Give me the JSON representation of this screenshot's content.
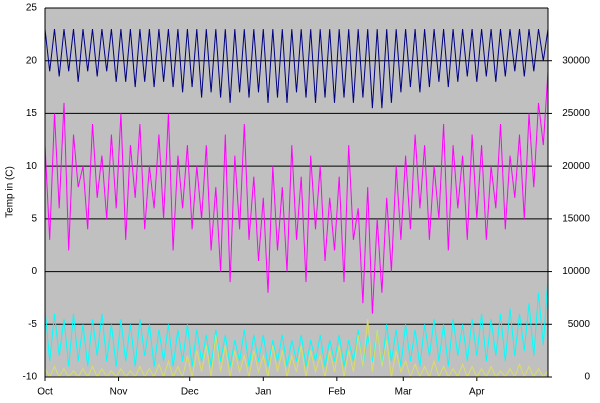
{
  "chart_data": {
    "type": "line",
    "y_label": "Temp in (C)",
    "xlim": [
      0,
      212
    ],
    "xticks": [
      {
        "value": 0,
        "label": "Oct"
      },
      {
        "value": 31,
        "label": "Nov"
      },
      {
        "value": 61,
        "label": "Dec"
      },
      {
        "value": 92,
        "label": "Jan"
      },
      {
        "value": 123,
        "label": "Feb"
      },
      {
        "value": 151,
        "label": "Mar"
      },
      {
        "value": 182,
        "label": "Apr"
      }
    ],
    "ylim": [
      -10,
      25
    ],
    "yticks": [
      -10,
      -5,
      0,
      5,
      10,
      15,
      20,
      25
    ],
    "y2lim": [
      0,
      35000
    ],
    "y2ticks": [
      0,
      5000,
      10000,
      15000,
      20000,
      25000,
      30000
    ],
    "grid": true,
    "x": [
      0,
      2,
      4,
      6,
      8,
      10,
      12,
      14,
      16,
      18,
      20,
      22,
      24,
      26,
      28,
      30,
      32,
      34,
      36,
      38,
      40,
      42,
      44,
      46,
      48,
      50,
      52,
      54,
      56,
      58,
      60,
      62,
      64,
      66,
      68,
      70,
      72,
      74,
      76,
      78,
      80,
      82,
      84,
      86,
      88,
      90,
      92,
      94,
      96,
      98,
      100,
      102,
      104,
      106,
      108,
      110,
      112,
      114,
      116,
      118,
      120,
      122,
      124,
      126,
      128,
      130,
      132,
      134,
      136,
      138,
      140,
      142,
      144,
      146,
      148,
      150,
      152,
      154,
      156,
      158,
      160,
      162,
      164,
      166,
      168,
      170,
      172,
      174,
      176,
      178,
      180,
      182,
      184,
      186,
      188,
      190,
      192,
      194,
      196,
      198,
      200,
      202,
      204,
      206,
      208,
      210,
      212
    ],
    "series": [
      {
        "name": "cyan",
        "color": "#00ffff",
        "axis": "y2",
        "values": [
          6500,
          1500,
          6000,
          2000,
          5500,
          1000,
          6000,
          1500,
          5000,
          1000,
          5500,
          2000,
          6000,
          1500,
          5000,
          1000,
          5500,
          1500,
          5000,
          1000,
          5500,
          2000,
          5000,
          1000,
          4500,
          1500,
          5000,
          1000,
          4500,
          1500,
          5000,
          1000,
          4500,
          1500,
          4000,
          1000,
          4500,
          1500,
          4000,
          1000,
          3500,
          1500,
          4500,
          1000,
          4000,
          1500,
          4000,
          1000,
          3500,
          1500,
          4000,
          1000,
          3500,
          1500,
          4000,
          1000,
          3500,
          1500,
          4000,
          1000,
          3500,
          1500,
          4000,
          1000,
          3500,
          1500,
          4500,
          1000,
          4000,
          1500,
          4500,
          1000,
          5000,
          1500,
          4500,
          1000,
          5000,
          1500,
          4500,
          1000,
          5000,
          2000,
          5500,
          1500,
          5000,
          1000,
          5500,
          2000,
          5000,
          1500,
          5500,
          2000,
          6000,
          1500,
          5500,
          2000,
          6000,
          1500,
          6500,
          2000,
          6000,
          2500,
          7000,
          2000,
          8000,
          3000,
          9500
        ]
      },
      {
        "name": "yellow",
        "color": "#dcdc64",
        "axis": "y2",
        "values": [
          800,
          0,
          1000,
          0,
          800,
          0,
          600,
          0,
          800,
          0,
          1000,
          0,
          800,
          0,
          600,
          0,
          800,
          0,
          600,
          0,
          1000,
          0,
          800,
          0,
          1200,
          0,
          1500,
          0,
          1000,
          0,
          2000,
          0,
          2500,
          500,
          3000,
          0,
          4000,
          500,
          3000,
          0,
          2500,
          500,
          2000,
          0,
          2500,
          500,
          2000,
          0,
          3000,
          500,
          2500,
          0,
          2000,
          500,
          3000,
          0,
          2500,
          500,
          2000,
          0,
          2500,
          500,
          3000,
          0,
          2500,
          500,
          4000,
          1000,
          5500,
          500,
          4500,
          1000,
          3500,
          0,
          2500,
          500,
          1500,
          0,
          1200,
          0,
          1000,
          0,
          1500,
          0,
          1000,
          0,
          800,
          0,
          1200,
          0,
          1000,
          0,
          800,
          0,
          1000,
          0,
          600,
          0,
          800,
          0,
          1200,
          0,
          1000,
          0,
          800,
          0,
          600
        ]
      },
      {
        "name": "magenta",
        "color": "#ff00ff",
        "values": [
          12,
          3,
          15,
          6,
          16,
          2,
          13,
          8,
          10,
          4,
          14,
          7,
          11,
          5,
          13,
          6,
          15,
          3,
          12,
          7,
          14,
          4,
          10,
          6,
          13,
          5,
          15,
          2,
          11,
          6,
          12,
          4,
          10,
          5,
          12,
          2,
          8,
          0,
          13,
          -1,
          11,
          4,
          14,
          3,
          9,
          1,
          7,
          -2,
          10,
          2,
          8,
          0,
          12,
          3,
          9,
          -1,
          11,
          4,
          10,
          1,
          7,
          2,
          9,
          -1,
          12,
          3,
          6,
          -3,
          8,
          -4,
          5,
          -2,
          7,
          0,
          10,
          3,
          11,
          4,
          13,
          6,
          12,
          3,
          10,
          5,
          14,
          2,
          12,
          6,
          11,
          3,
          13,
          5,
          12,
          3,
          10,
          6,
          14,
          4,
          11,
          7,
          13,
          5,
          15,
          8,
          16,
          12,
          19
        ]
      },
      {
        "name": "navy",
        "color": "#000080",
        "values": [
          23,
          19,
          23,
          18.5,
          23,
          19,
          23,
          18,
          23,
          19,
          23,
          18.5,
          23,
          19,
          23,
          18,
          23,
          18,
          23,
          17.5,
          23,
          18,
          23,
          17.5,
          23,
          18,
          23,
          17.5,
          23,
          17,
          23,
          17.5,
          23,
          16.5,
          23,
          17,
          23,
          16.5,
          23,
          16,
          23,
          17,
          23,
          16.5,
          23,
          17,
          23,
          16,
          23,
          16.5,
          23,
          16,
          23,
          17,
          23,
          16.5,
          23,
          16,
          23,
          16.5,
          23,
          16,
          23,
          16.5,
          23,
          16,
          23,
          16.5,
          23,
          15.5,
          23,
          15.5,
          23,
          16,
          23,
          17,
          23,
          17.5,
          23,
          17,
          23,
          17.5,
          23,
          18,
          23,
          17.5,
          23,
          18,
          23,
          18.5,
          23,
          18,
          23,
          18.5,
          23,
          18,
          23,
          18.5,
          23,
          19,
          23,
          18.5,
          23,
          19,
          23,
          20,
          23
        ]
      }
    ]
  }
}
